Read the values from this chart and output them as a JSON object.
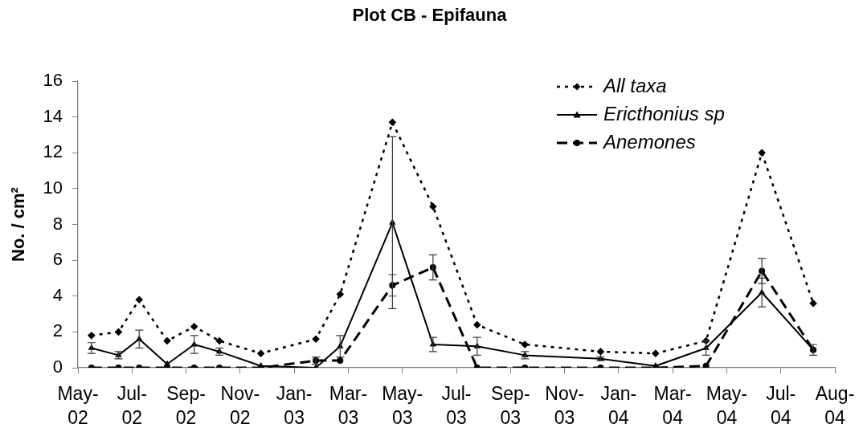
{
  "chart_data": {
    "type": "line",
    "title": "Plot CB - Epifauna",
    "ylabel": "No. / cm²",
    "x": [
      "2002-05-29",
      "2002-06-28",
      "2002-07-21",
      "2002-08-21",
      "2002-09-20",
      "2002-10-18",
      "2002-12-03",
      "2003-02-02",
      "2003-03-01",
      "2003-04-28",
      "2003-06-12",
      "2003-07-31",
      "2003-09-22",
      "2003-12-15",
      "2004-02-14",
      "2004-04-10",
      "2004-06-11",
      "2004-08-07"
    ],
    "xlim": [
      "2002-05-14",
      "2004-08-31"
    ],
    "xticks": [
      {
        "value": "2002-05-14",
        "label": "May-02"
      },
      {
        "value": "2002-07-13",
        "label": "Jul-02"
      },
      {
        "value": "2002-09-11",
        "label": "Sep-02"
      },
      {
        "value": "2002-11-10",
        "label": "Nov-02"
      },
      {
        "value": "2003-01-09",
        "label": "Jan-03"
      },
      {
        "value": "2003-03-10",
        "label": "Mar-03"
      },
      {
        "value": "2003-05-09",
        "label": "May-03"
      },
      {
        "value": "2003-07-08",
        "label": "Jul-03"
      },
      {
        "value": "2003-09-06",
        "label": "Sep-03"
      },
      {
        "value": "2003-11-05",
        "label": "Nov-03"
      },
      {
        "value": "2004-01-04",
        "label": "Jan-04"
      },
      {
        "value": "2004-03-04",
        "label": "Mar-04"
      },
      {
        "value": "2004-05-03",
        "label": "May-04"
      },
      {
        "value": "2004-07-02",
        "label": "Jul-04"
      },
      {
        "value": "2004-08-31",
        "label": "Aug-04"
      }
    ],
    "ylim": [
      0,
      16
    ],
    "yticks": [
      0,
      2,
      4,
      6,
      8,
      10,
      12,
      14,
      16
    ],
    "grid": false,
    "legend": "top right",
    "series": [
      {
        "name": "All taxa",
        "color": "#000000",
        "marker": "diamond",
        "line_style": "dotted",
        "values": [
          1.8,
          2.0,
          3.8,
          1.5,
          2.3,
          1.5,
          0.8,
          1.6,
          4.1,
          13.7,
          9.0,
          2.4,
          1.3,
          0.9,
          0.8,
          1.5,
          12.0,
          3.6
        ]
      },
      {
        "name": "Ericthonius sp",
        "color": "#000000",
        "marker": "triangle",
        "line_style": "solid",
        "values": [
          1.1,
          0.7,
          1.6,
          0.2,
          1.3,
          0.9,
          0.1,
          0.0,
          1.2,
          8.1,
          1.3,
          1.2,
          0.7,
          0.5,
          0.1,
          1.1,
          4.2,
          1.0
        ],
        "errors": [
          0.3,
          0.2,
          0.5,
          null,
          0.5,
          0.2,
          null,
          null,
          0.6,
          4.8,
          0.4,
          0.5,
          0.2,
          0.1,
          null,
          0.4,
          0.8,
          0.3
        ]
      },
      {
        "name": "Anemones",
        "color": "#000000",
        "marker": "circle",
        "line_style": "dashed",
        "values": [
          0,
          0,
          0,
          0,
          0,
          0,
          0,
          0.4,
          0.4,
          4.6,
          5.6,
          0,
          0,
          0,
          0,
          0.1,
          5.4,
          1.0
        ],
        "errors": [
          null,
          null,
          null,
          null,
          null,
          null,
          null,
          0.2,
          null,
          0.6,
          0.7,
          null,
          null,
          null,
          null,
          null,
          0.7,
          null
        ]
      }
    ]
  }
}
